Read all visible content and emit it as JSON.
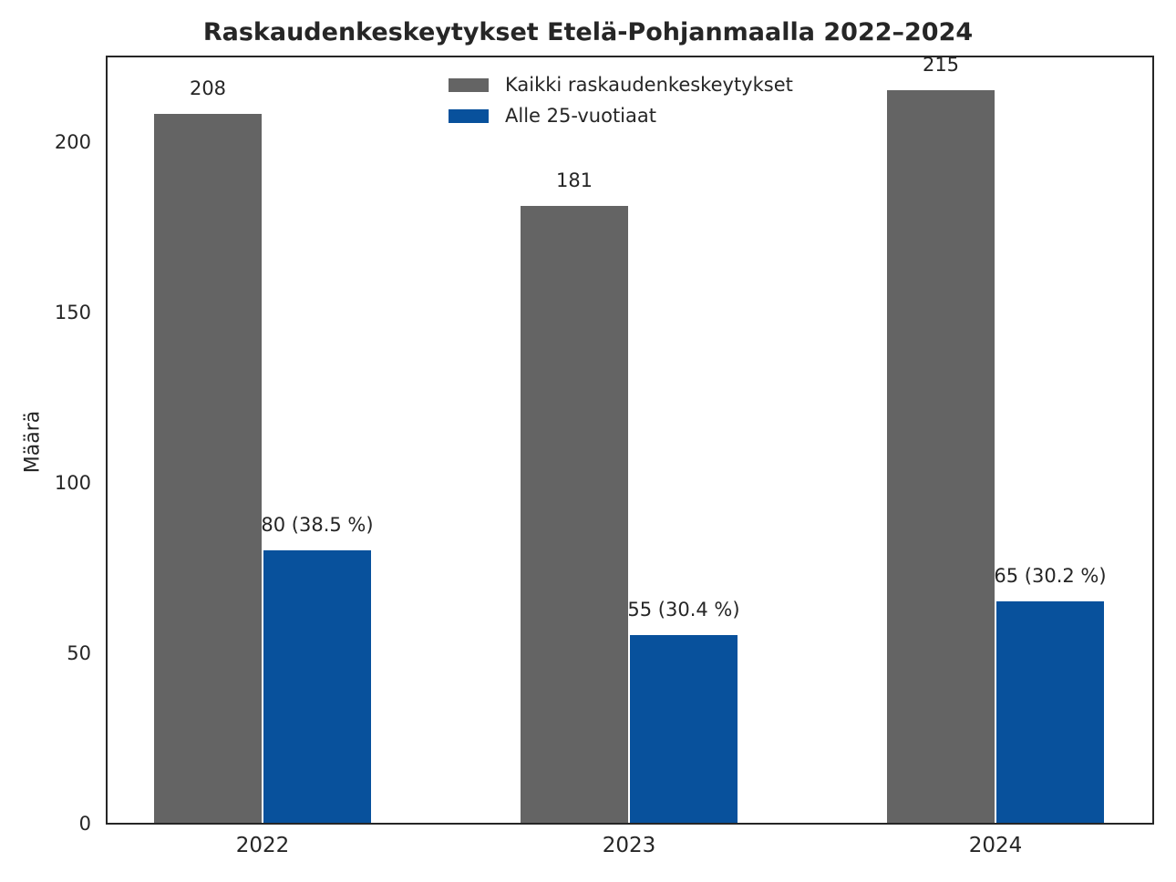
{
  "chart_data": {
    "type": "bar",
    "title": "Raskaudenkeskeytykset Etelä-Pohjanmaalla 2022–2024",
    "xlabel": "",
    "ylabel": "Määrä",
    "categories": [
      "2022",
      "2023",
      "2024"
    ],
    "series": [
      {
        "name": "Kaikki raskaudenkeskeytykset",
        "color": "#646464",
        "values": [
          208,
          181,
          215
        ],
        "labels": [
          "208",
          "181",
          "215"
        ]
      },
      {
        "name": "Alle 25-vuotiaat",
        "color": "#08519c",
        "values": [
          80,
          55,
          65
        ],
        "labels": [
          "80 (38.5 %)",
          "55 (30.4 %)",
          "65 (30.2 %)"
        ]
      }
    ],
    "ylim": [
      0,
      225.7
    ],
    "yticks": [
      "0",
      "50",
      "100",
      "150",
      "200"
    ],
    "grid": false,
    "legend_position": "upper center"
  }
}
